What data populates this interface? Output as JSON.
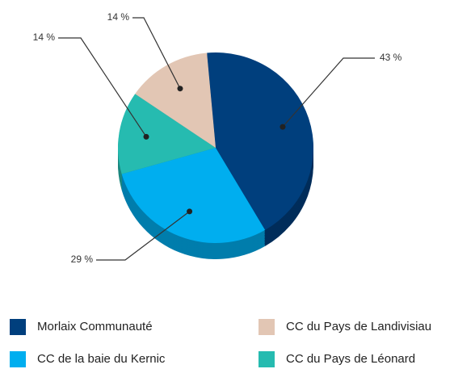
{
  "chart_data": {
    "type": "pie",
    "categories": [
      "Morlaix Communauté",
      "CC de la baie du Kernic",
      "CC du Pays de Léonard",
      "CC du Pays de Landivisiau"
    ],
    "values": [
      43,
      29,
      14,
      14
    ],
    "value_labels": [
      "43 %",
      "29 %",
      "14 %",
      "14 %"
    ],
    "colors": [
      "#003f7d",
      "#00aeef",
      "#26bbb0",
      "#e2c6b4"
    ]
  }
}
